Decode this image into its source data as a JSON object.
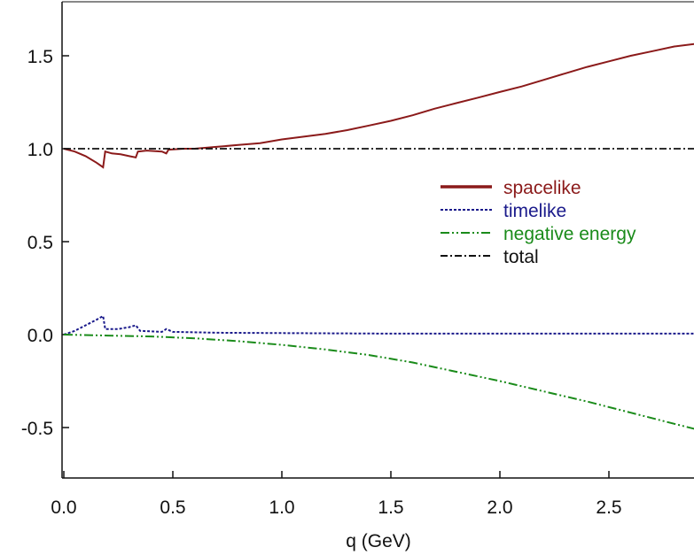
{
  "chart_data": {
    "type": "line",
    "title": "",
    "xlabel": "q (GeV)",
    "ylabel": "",
    "xlim": [
      0.0,
      3.0
    ],
    "ylim": [
      -0.8,
      1.75
    ],
    "x_ticks": [
      "0.0",
      "0.5",
      "1.0",
      "1.5",
      "2.0",
      "2.5"
    ],
    "y_ticks": [
      "-0.5",
      "0.0",
      "0.5",
      "1.0",
      "1.5"
    ],
    "grid": false,
    "legend_position": "right",
    "series": [
      {
        "name": "spacelike",
        "color": "#8b1a1a",
        "style": "solid",
        "points": [
          [
            0.0,
            1.0
          ],
          [
            0.05,
            0.985
          ],
          [
            0.1,
            0.96
          ],
          [
            0.15,
            0.925
          ],
          [
            0.18,
            0.9
          ],
          [
            0.19,
            0.985
          ],
          [
            0.22,
            0.975
          ],
          [
            0.26,
            0.97
          ],
          [
            0.3,
            0.96
          ],
          [
            0.33,
            0.953
          ],
          [
            0.34,
            0.985
          ],
          [
            0.38,
            0.99
          ],
          [
            0.45,
            0.985
          ],
          [
            0.47,
            0.975
          ],
          [
            0.48,
            0.995
          ],
          [
            0.55,
            1.0
          ],
          [
            0.6,
            1.0
          ],
          [
            0.7,
            1.01
          ],
          [
            0.8,
            1.02
          ],
          [
            0.9,
            1.03
          ],
          [
            1.0,
            1.05
          ],
          [
            1.1,
            1.065
          ],
          [
            1.2,
            1.08
          ],
          [
            1.3,
            1.1
          ],
          [
            1.4,
            1.125
          ],
          [
            1.5,
            1.15
          ],
          [
            1.6,
            1.18
          ],
          [
            1.7,
            1.215
          ],
          [
            1.8,
            1.245
          ],
          [
            1.9,
            1.275
          ],
          [
            2.0,
            1.305
          ],
          [
            2.1,
            1.335
          ],
          [
            2.2,
            1.37
          ],
          [
            2.3,
            1.405
          ],
          [
            2.4,
            1.44
          ],
          [
            2.5,
            1.47
          ],
          [
            2.6,
            1.5
          ],
          [
            2.7,
            1.525
          ],
          [
            2.8,
            1.55
          ],
          [
            2.9,
            1.565
          ],
          [
            2.97,
            1.575
          ]
        ]
      },
      {
        "name": "timelike",
        "color": "#1a1a8b",
        "style": "dotted",
        "points": [
          [
            0.0,
            0.0
          ],
          [
            0.05,
            0.02
          ],
          [
            0.1,
            0.05
          ],
          [
            0.15,
            0.08
          ],
          [
            0.18,
            0.1
          ],
          [
            0.19,
            0.03
          ],
          [
            0.25,
            0.03
          ],
          [
            0.3,
            0.04
          ],
          [
            0.33,
            0.05
          ],
          [
            0.35,
            0.02
          ],
          [
            0.45,
            0.015
          ],
          [
            0.47,
            0.03
          ],
          [
            0.5,
            0.015
          ],
          [
            0.7,
            0.01
          ],
          [
            1.0,
            0.008
          ],
          [
            1.5,
            0.005
          ],
          [
            2.0,
            0.005
          ],
          [
            2.5,
            0.005
          ],
          [
            2.97,
            0.005
          ]
        ]
      },
      {
        "name": "negative energy",
        "color": "#1a8b1a",
        "style": "dashdotdot",
        "points": [
          [
            0.0,
            0.0
          ],
          [
            0.2,
            -0.005
          ],
          [
            0.4,
            -0.01
          ],
          [
            0.6,
            -0.02
          ],
          [
            0.8,
            -0.035
          ],
          [
            1.0,
            -0.055
          ],
          [
            1.2,
            -0.08
          ],
          [
            1.4,
            -0.11
          ],
          [
            1.6,
            -0.15
          ],
          [
            1.8,
            -0.2
          ],
          [
            2.0,
            -0.25
          ],
          [
            2.2,
            -0.305
          ],
          [
            2.4,
            -0.36
          ],
          [
            2.6,
            -0.42
          ],
          [
            2.8,
            -0.48
          ],
          [
            2.97,
            -0.53
          ]
        ]
      },
      {
        "name": "total",
        "color": "#111111",
        "style": "dashdot",
        "points": [
          [
            0.0,
            1.0
          ],
          [
            2.97,
            1.0
          ]
        ]
      }
    ]
  }
}
